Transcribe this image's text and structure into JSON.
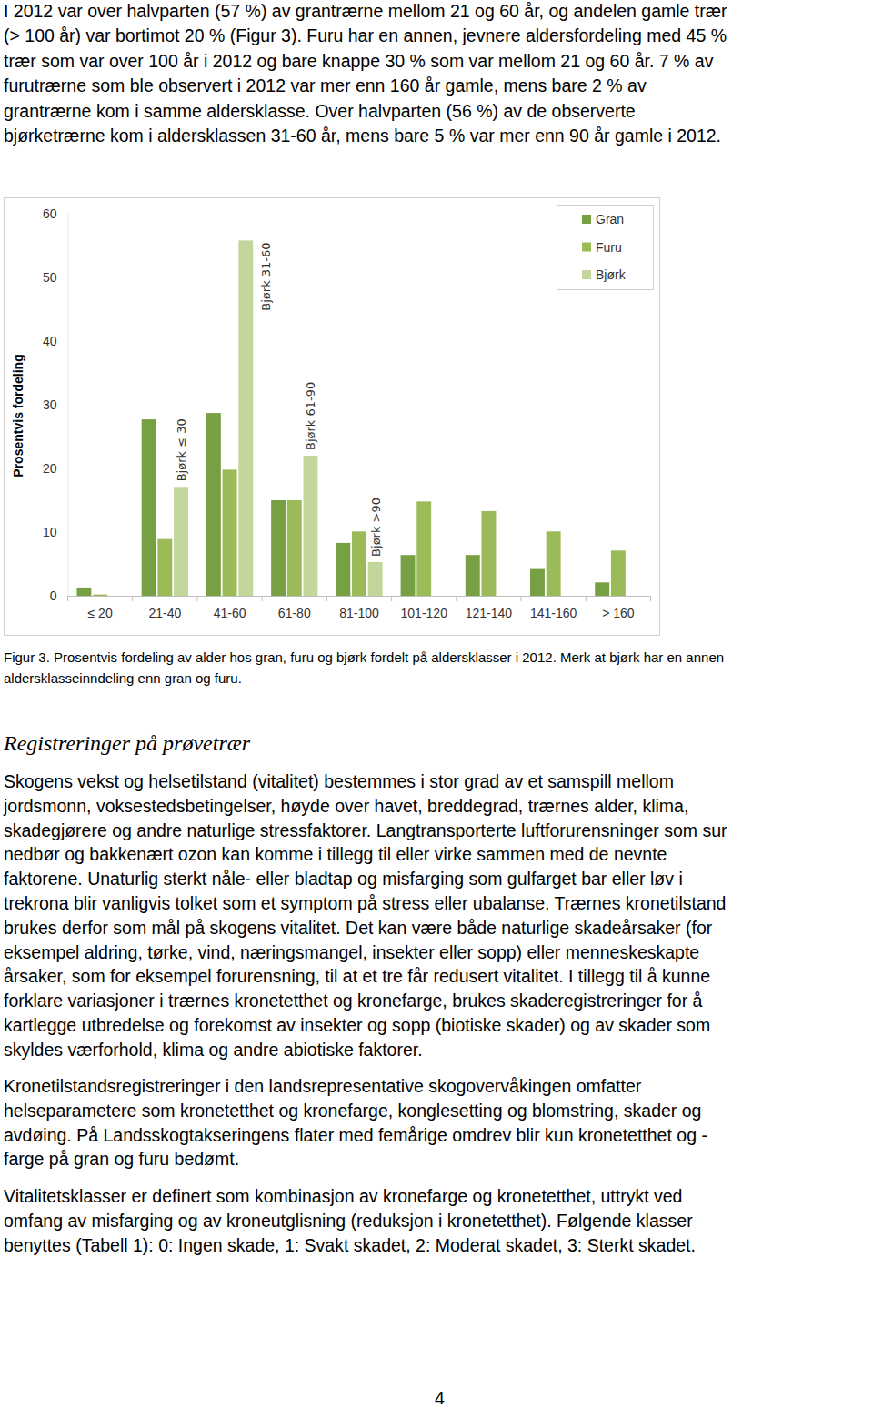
{
  "intro": [
    "I 2012 var over halvparten (57 %) av grantrærne mellom 21 og 60 år, og andelen gamle trær",
    "(> 100 år) var bortimot 20 % (Figur 3). Furu har en annen, jevnere aldersfordeling med 45 %",
    "trær som var over 100 år i 2012 og bare knappe 30 % som var mellom 21 og 60 år. 7 % av",
    "furutrærne som ble observert i 2012 var mer enn 160 år gamle, mens bare 2 % av",
    "grantrærne kom i samme aldersklasse. Over halvparten (56 %) av de observerte",
    "bjørketrærne kom i aldersklassen 31-60 år, mens bare 5 % var mer enn 90 år gamle i 2012."
  ],
  "chart_data": {
    "type": "bar",
    "categories": [
      "≤ 20",
      "21-40",
      "41-60",
      "61-80",
      "81-100",
      "101-120",
      "121-140",
      "141-160",
      "> 160"
    ],
    "series": [
      {
        "name": "Gran",
        "color": "#77a043",
        "values": [
          1.3,
          27.7,
          28.7,
          15,
          8.3,
          6.4,
          6.4,
          4.2,
          2.1
        ]
      },
      {
        "name": "Furu",
        "color": "#9bbb59",
        "values": [
          0.2,
          8.9,
          19.8,
          15,
          10.1,
          14.8,
          13.3,
          10.1,
          7.1
        ]
      },
      {
        "name": "Bjørk",
        "color": "#c3d69b",
        "values": [
          null,
          17.1,
          55.8,
          22,
          5.3,
          null,
          null,
          null,
          null
        ],
        "labels": [
          null,
          "Bjørk ≤ 30",
          "Bjørk 31-60",
          "Bjørk 61-90",
          "Bjørk >90",
          null,
          null,
          null,
          null
        ]
      }
    ],
    "y_label": "Prosentvis fordeling",
    "ylim": [
      0,
      60
    ],
    "yticks": [
      0,
      10,
      20,
      30,
      40,
      50,
      60
    ],
    "legend": "upper right",
    "grid": false
  },
  "caption": [
    "Figur 3. Prosentvis fordeling av alder hos gran, furu og bjørk fordelt på aldersklasser i 2012. Merk at bjørk har en annen",
    "aldersklasseinndeling enn gran og furu."
  ],
  "heading": "Registreringer på prøvetrær",
  "paragraphs": [
    [
      "Skogens vekst og helsetilstand (vitalitet) bestemmes i stor grad av et samspill mellom",
      "jordsmonn, voksestedsbetingelser, høyde over havet, breddegrad, trærnes alder, klima,",
      "skadegjørere og andre naturlige stressfaktorer. Langtransporterte luftforurensninger som sur",
      "nedbør og bakkenært ozon kan komme i tillegg til eller virke sammen med de nevnte",
      "faktorene. Unaturlig sterkt nåle- eller bladtap og misfarging som gulfarget bar eller løv i",
      "trekrona blir vanligvis tolket som et symptom på stress eller ubalanse. Trærnes kronetilstand",
      "brukes derfor som mål på skogens vitalitet. Det kan være både naturlige skadeårsaker (for",
      "eksempel aldring, tørke, vind, næringsmangel, insekter eller sopp) eller menneskeskapte",
      "årsaker, som for eksempel forurensning, til at et tre får redusert vitalitet. I tillegg til å kunne",
      "forklare variasjoner i trærnes kronetetthet og kronefarge, brukes skaderegistreringer for å",
      "kartlegge utbredelse og forekomst av insekter og sopp (biotiske skader) og av skader som",
      "skyldes værforhold, klima og andre abiotiske faktorer."
    ],
    [
      "Kronetilstandsregistreringer i den landsrepresentative skogovervåkingen omfatter",
      "helseparametere som kronetetthet og kronefarge, konglesetting og blomstring, skader og",
      "avdøing. På Landsskogtakseringens flater med femårige omdrev blir kun kronetetthet og -",
      "farge på gran og furu bedømt."
    ],
    [
      "Vitalitetsklasser er definert som kombinasjon av kronefarge og kronetetthet, uttrykt ved",
      "omfang av misfarging og av kroneutglisning (reduksjon i kronetetthet). Følgende klasser",
      "benyttes (Tabell 1): 0: Ingen skade, 1: Svakt skadet, 2: Moderat skadet, 3: Sterkt skadet."
    ]
  ],
  "page_number": 4
}
